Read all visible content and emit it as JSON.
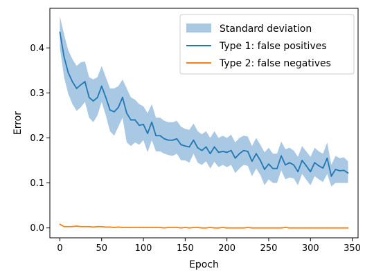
{
  "chart_data": {
    "type": "line",
    "title": "",
    "xlabel": "Epoch",
    "ylabel": "Error",
    "xlim": [
      -12,
      357
    ],
    "ylim": [
      -0.022,
      0.488
    ],
    "xticks": [
      0,
      50,
      100,
      150,
      200,
      250,
      300,
      350
    ],
    "xtick_labels": [
      "0",
      "50",
      "100",
      "150",
      "200",
      "250",
      "300",
      "350"
    ],
    "yticks": [
      0.0,
      0.1,
      0.2,
      0.3,
      0.4
    ],
    "ytick_labels": [
      "0.0",
      "0.1",
      "0.2",
      "0.3",
      "0.4"
    ],
    "grid": false,
    "legend_position": "top-right",
    "legend": [
      "Standard deviation",
      "Type 1: false positives",
      "Type 2: false negatives"
    ],
    "colors": {
      "type1": "#1f77b4",
      "band": "#a9c8e3",
      "type2": "#ff7f0e"
    },
    "x": [
      0,
      5,
      10,
      15,
      20,
      25,
      30,
      35,
      40,
      45,
      50,
      55,
      60,
      65,
      70,
      75,
      80,
      85,
      90,
      95,
      100,
      105,
      110,
      115,
      120,
      125,
      130,
      135,
      140,
      145,
      150,
      155,
      160,
      165,
      170,
      175,
      180,
      185,
      190,
      195,
      200,
      205,
      210,
      215,
      220,
      225,
      230,
      235,
      240,
      245,
      250,
      255,
      260,
      265,
      270,
      275,
      280,
      285,
      290,
      295,
      300,
      305,
      310,
      315,
      320,
      325,
      330,
      335,
      340,
      345
    ],
    "series": [
      {
        "name": "Type 1: false positives",
        "values": [
          0.435,
          0.38,
          0.345,
          0.325,
          0.31,
          0.318,
          0.325,
          0.29,
          0.282,
          0.29,
          0.315,
          0.29,
          0.262,
          0.258,
          0.268,
          0.29,
          0.255,
          0.24,
          0.24,
          0.228,
          0.23,
          0.21,
          0.235,
          0.205,
          0.205,
          0.198,
          0.195,
          0.195,
          0.198,
          0.185,
          0.182,
          0.18,
          0.195,
          0.178,
          0.172,
          0.18,
          0.165,
          0.18,
          0.168,
          0.17,
          0.168,
          0.172,
          0.155,
          0.165,
          0.172,
          0.17,
          0.148,
          0.165,
          0.15,
          0.13,
          0.142,
          0.132,
          0.132,
          0.16,
          0.14,
          0.145,
          0.14,
          0.125,
          0.15,
          0.138,
          0.125,
          0.145,
          0.138,
          0.133,
          0.155,
          0.115,
          0.13,
          0.127,
          0.128,
          0.122
        ]
      },
      {
        "name": "Type 2: false negatives",
        "values": [
          0.008,
          0.003,
          0.003,
          0.003,
          0.004,
          0.003,
          0.003,
          0.003,
          0.002,
          0.003,
          0.003,
          0.002,
          0.002,
          0.001,
          0.002,
          0.001,
          0.001,
          0.001,
          0.001,
          0.001,
          0.001,
          0.001,
          0.001,
          0.001,
          0.001,
          0.0,
          0.001,
          0.001,
          0.001,
          0.0,
          0.001,
          0.0,
          0.001,
          0.001,
          0.0,
          0.0,
          0.001,
          0.0,
          0.0,
          0.001,
          0.0,
          0.0,
          0.0,
          0.0,
          0.0,
          0.001,
          0.0,
          0.0,
          0.0,
          0.0,
          0.0,
          0.0,
          0.0,
          0.0,
          0.001,
          0.0,
          0.0,
          0.0,
          0.0,
          0.0,
          0.0,
          0.0,
          0.0,
          0.0,
          0.0,
          0.0,
          0.0,
          0.0,
          0.0,
          0.0
        ]
      }
    ],
    "band": {
      "name": "Standard deviation",
      "lower": [
        0.4,
        0.335,
        0.298,
        0.275,
        0.26,
        0.268,
        0.28,
        0.245,
        0.235,
        0.25,
        0.28,
        0.25,
        0.215,
        0.205,
        0.225,
        0.245,
        0.19,
        0.182,
        0.19,
        0.185,
        0.195,
        0.168,
        0.195,
        0.17,
        0.17,
        0.165,
        0.162,
        0.16,
        0.165,
        0.15,
        0.15,
        0.145,
        0.165,
        0.145,
        0.14,
        0.148,
        0.132,
        0.147,
        0.135,
        0.14,
        0.135,
        0.14,
        0.122,
        0.132,
        0.14,
        0.138,
        0.115,
        0.132,
        0.118,
        0.095,
        0.108,
        0.1,
        0.1,
        0.128,
        0.108,
        0.112,
        0.11,
        0.095,
        0.12,
        0.107,
        0.095,
        0.115,
        0.108,
        0.102,
        0.12,
        0.092,
        0.1,
        0.1,
        0.1,
        0.1
      ],
      "upper": [
        0.47,
        0.43,
        0.395,
        0.375,
        0.36,
        0.368,
        0.37,
        0.335,
        0.33,
        0.335,
        0.36,
        0.335,
        0.31,
        0.31,
        0.315,
        0.33,
        0.31,
        0.29,
        0.285,
        0.275,
        0.27,
        0.255,
        0.275,
        0.245,
        0.245,
        0.238,
        0.235,
        0.235,
        0.238,
        0.225,
        0.22,
        0.218,
        0.232,
        0.215,
        0.208,
        0.215,
        0.2,
        0.215,
        0.2,
        0.205,
        0.2,
        0.207,
        0.19,
        0.2,
        0.205,
        0.203,
        0.182,
        0.2,
        0.185,
        0.168,
        0.178,
        0.165,
        0.165,
        0.192,
        0.175,
        0.178,
        0.172,
        0.158,
        0.182,
        0.17,
        0.158,
        0.178,
        0.17,
        0.165,
        0.19,
        0.14,
        0.16,
        0.155,
        0.157,
        0.148
      ]
    }
  }
}
